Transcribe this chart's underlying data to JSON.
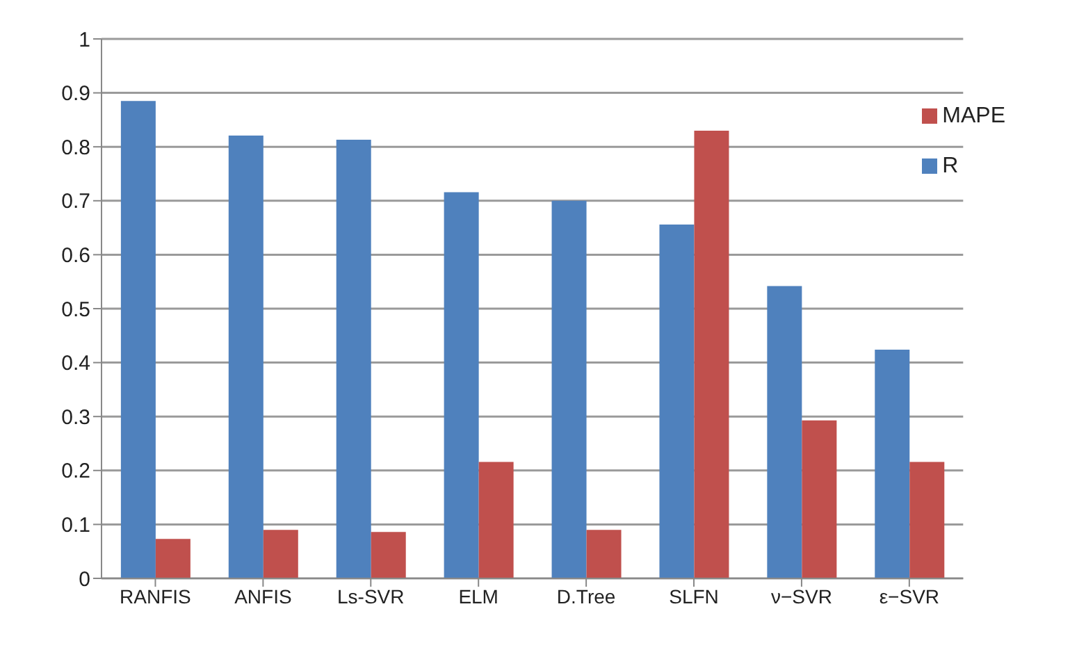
{
  "chart_data": {
    "type": "bar",
    "categories": [
      "RANFIS",
      "ANFIS",
      "Ls-SVR",
      "ELM",
      "D.Tree",
      "SLFN",
      "ν−SVR",
      "ε−SVR"
    ],
    "series": [
      {
        "name": "R",
        "color": "#4f81bd",
        "values": [
          0.885,
          0.821,
          0.813,
          0.716,
          0.7,
          0.656,
          0.542,
          0.424
        ]
      },
      {
        "name": "MAPE",
        "color": "#c0504d",
        "values": [
          0.073,
          0.09,
          0.086,
          0.216,
          0.09,
          0.83,
          0.293,
          0.216
        ]
      }
    ],
    "ylim": [
      0,
      1
    ],
    "yticks": [
      0,
      0.1,
      0.2,
      0.3,
      0.4,
      0.5,
      0.6,
      0.7,
      0.8,
      0.9,
      1
    ],
    "grid": "y",
    "legend": "top right"
  }
}
